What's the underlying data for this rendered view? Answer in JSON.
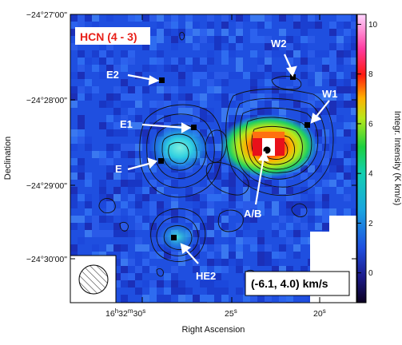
{
  "chart_data": {
    "type": "heatmap",
    "title": "HCN (4 - 3)",
    "velocity_range_label": "(-6.1, 4.0) km/s",
    "xlabel": "Right Ascension",
    "ylabel": "Declination",
    "colorbar_label": "Integr. Intensity (K km/s)",
    "colorbar_ticks": [
      "0",
      "2",
      "4",
      "6",
      "8",
      "10"
    ],
    "colorbar_range": [
      -1.2,
      10.4
    ],
    "x_tick_labels": [
      {
        "main": "16",
        "s1": "h",
        "mid": "32",
        "s2": "m",
        "end": "30",
        "s3": "s"
      },
      {
        "main": "25",
        "s1": "s"
      },
      {
        "main": "20",
        "s1": "s"
      }
    ],
    "y_tick_labels": [
      "−24°27'00\"",
      "−24°28'00\"",
      "−24°29'00\"",
      "−24°30'00\""
    ],
    "sources": [
      "W2",
      "E2",
      "W1",
      "E1",
      "A/B",
      "E",
      "HE2"
    ],
    "colors": {
      "background_map": "#1f4fe0",
      "title": "#e8211a",
      "peak": "#e8101a"
    }
  }
}
